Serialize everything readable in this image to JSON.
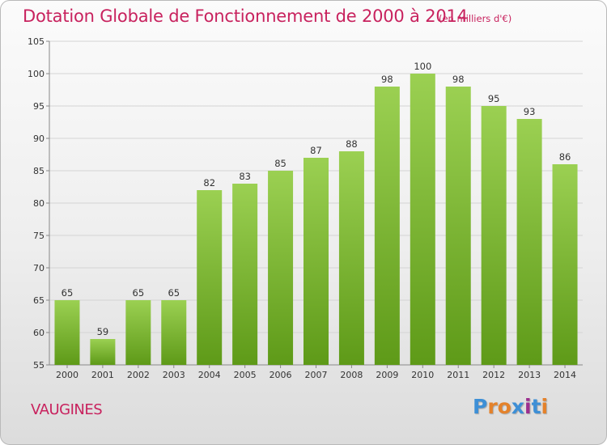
{
  "title": "Dotation Globale de Fonctionnement de 2000 à 2014",
  "subtitle": "(en milliers d'€)",
  "place": "VAUGINES",
  "logo": {
    "text": "Proxiti",
    "colors": [
      "#3d8fd6",
      "#e4822b",
      "#e4822b",
      "#3d8fd6",
      "#9c2f8f",
      "#3d8fd6",
      "#e4822b"
    ]
  },
  "colors": {
    "title": "#c8225e",
    "bar_light": "#9bd052",
    "bar_dark": "#5e9a18",
    "grid": "#d4d4d4"
  },
  "chart_data": {
    "type": "bar",
    "categories": [
      "2000",
      "2001",
      "2002",
      "2003",
      "2004",
      "2005",
      "2006",
      "2007",
      "2008",
      "2009",
      "2010",
      "2011",
      "2012",
      "2013",
      "2014"
    ],
    "values": [
      65,
      59,
      65,
      65,
      82,
      83,
      85,
      87,
      88,
      98,
      100,
      98,
      95,
      93,
      86
    ],
    "ylim": [
      55,
      105
    ],
    "yticks": [
      55,
      60,
      65,
      70,
      75,
      80,
      85,
      90,
      95,
      100,
      105
    ],
    "grid": true,
    "data_labels": true
  }
}
